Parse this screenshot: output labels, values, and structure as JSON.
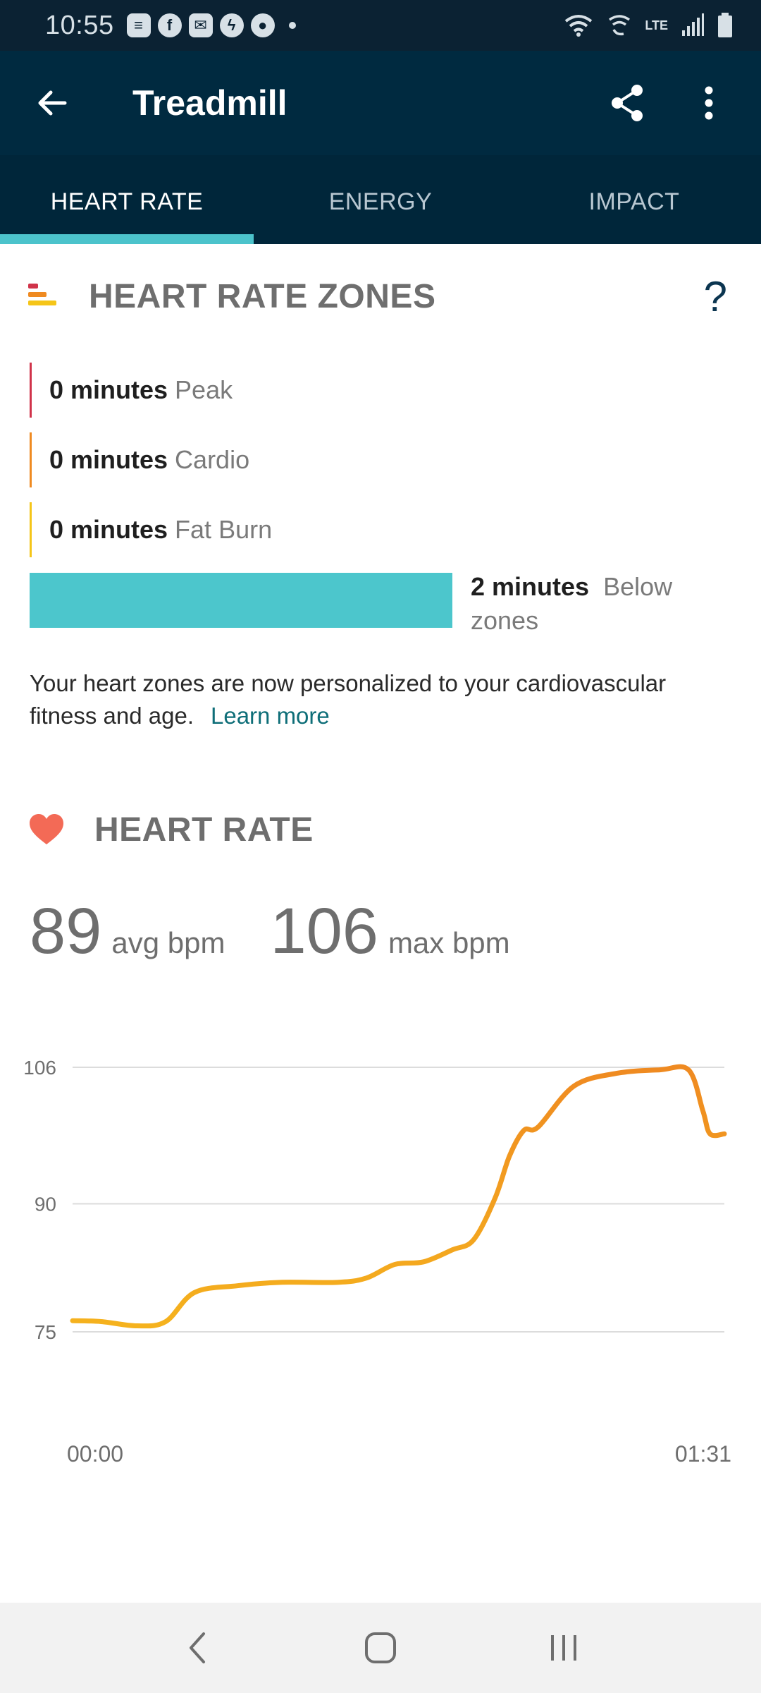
{
  "status_bar": {
    "time": "10:55",
    "notifications": [
      "calendar-icon",
      "facebook-icon",
      "gmail-icon",
      "messenger-icon",
      "chat-icon"
    ],
    "right_icons": [
      "wifi-icon",
      "wifi-calling-icon",
      "lte-icon",
      "signal-icon",
      "battery-icon"
    ],
    "lte_label": "LTE"
  },
  "app_bar": {
    "title": "Treadmill",
    "back_icon": "arrow-left-icon",
    "share_icon": "share-icon",
    "more_icon": "more-vert-icon"
  },
  "tabs": [
    {
      "label": "HEART RATE",
      "active": true
    },
    {
      "label": "ENERGY",
      "active": false
    },
    {
      "label": "IMPACT",
      "active": false
    }
  ],
  "zones_section": {
    "title": "HEART RATE ZONES",
    "help_label": "?",
    "zones": [
      {
        "minutes": "0 minutes",
        "name": "Peak",
        "color": "#d0334a"
      },
      {
        "minutes": "0 minutes",
        "name": "Cardio",
        "color": "#ef8a21"
      },
      {
        "minutes": "0 minutes",
        "name": "Fat Burn",
        "color": "#f5c518"
      }
    ],
    "below": {
      "minutes": "2 minutes",
      "name": "Below zones",
      "color": "#4cc6cc"
    },
    "note": "Your heart zones are now personalized to your cardiovascular fitness and age.",
    "learn_more": "Learn more"
  },
  "hr_section": {
    "title": "HEART RATE",
    "avg_value": "89",
    "avg_unit": "avg bpm",
    "max_value": "106",
    "max_unit": "max bpm"
  },
  "chart_data": {
    "type": "line",
    "x_labels": [
      "00:00",
      "01:31"
    ],
    "y_ticks": [
      75,
      90,
      106
    ],
    "ylim": [
      75,
      106
    ],
    "xlim": [
      0,
      91
    ],
    "grid": true,
    "series": [
      {
        "x": [
          0,
          4,
          9,
          13,
          17,
          23,
          29,
          37,
          41,
          45,
          49,
          53,
          56,
          59,
          61,
          63,
          65,
          70,
          76,
          82,
          86,
          88,
          89,
          91
        ],
        "values": [
          76.3,
          76.2,
          75.7,
          76.2,
          79.6,
          80.4,
          80.8,
          80.8,
          81.3,
          82.9,
          83.2,
          84.6,
          85.8,
          90.7,
          95.6,
          98.6,
          99.0,
          103.8,
          105.3,
          105.7,
          105.7,
          100.9,
          98.2,
          98.2
        ],
        "color_start": "#f5b21e",
        "color_end": "#ef8a21"
      }
    ]
  },
  "nav_bar": {
    "icons": [
      "nav-back-icon",
      "nav-home-icon",
      "nav-recents-icon"
    ]
  }
}
